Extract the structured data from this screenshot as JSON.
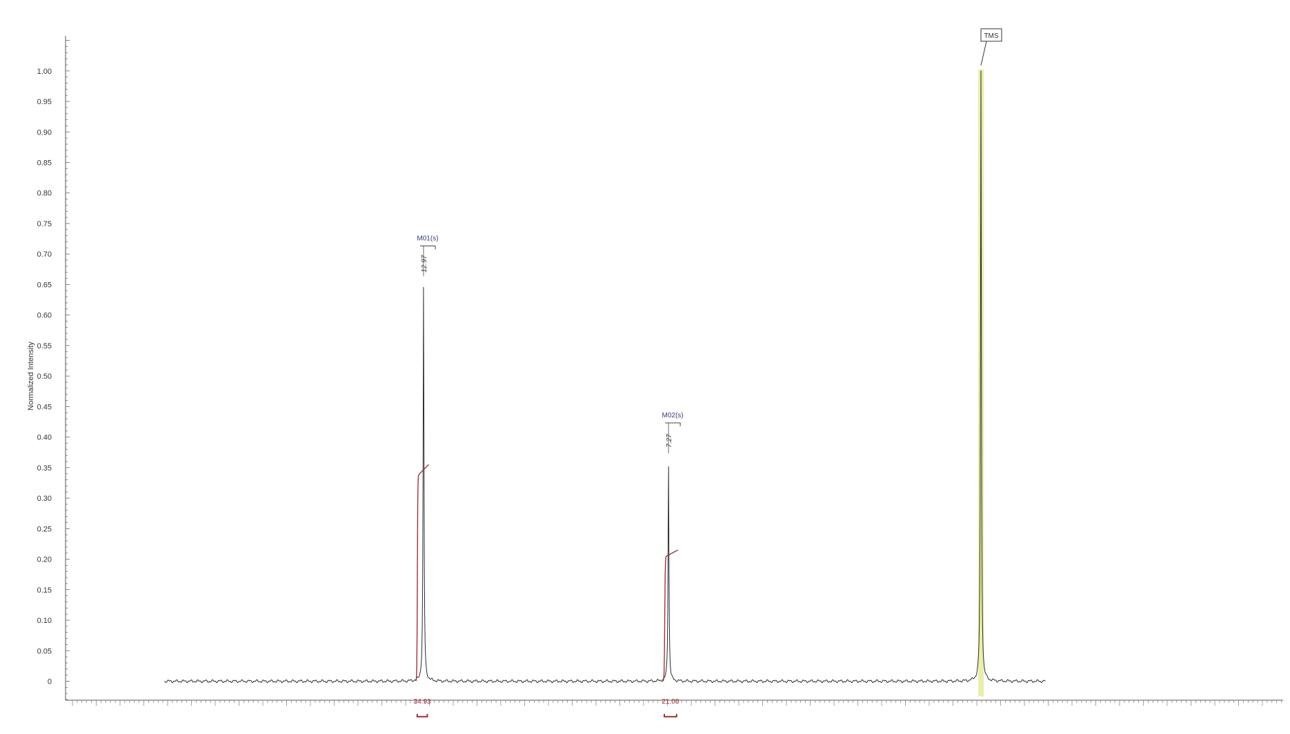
{
  "chart_data": {
    "type": "line",
    "title": "",
    "xlabel": "",
    "ylabel": "Normalized Intensity",
    "x_reversed": true,
    "xlim": [
      -2,
      20
    ],
    "ylim": [
      -0.03,
      1.06
    ],
    "grid": false,
    "yticks": [
      0,
      0.05,
      0.1,
      0.15,
      0.2,
      0.25,
      0.3,
      0.35,
      0.4,
      0.45,
      0.5,
      0.55,
      0.6,
      0.65,
      0.7,
      0.75,
      0.8,
      0.85,
      0.9,
      0.95,
      1.0
    ],
    "ytick_labels": [
      "0",
      "0.05",
      "0.10",
      "0.15",
      "0.20",
      "0.25",
      "0.30",
      "0.35",
      "0.40",
      "0.45",
      "0.50",
      "0.55",
      "0.60",
      "0.65",
      "0.70",
      "0.75",
      "0.80",
      "0.85",
      "0.90",
      "0.95",
      "1.00"
    ],
    "spectrum_range": [
      -1.5,
      19.0
    ],
    "peaks": [
      {
        "x": 12.97,
        "height": 0.65,
        "label": "12.97",
        "multiplet": "M01(s)"
      },
      {
        "x": 7.27,
        "height": 0.36,
        "label": "7.27",
        "multiplet": "M02(s)"
      },
      {
        "x": 0.0,
        "height": 1.0,
        "label": "TMS",
        "multiplet": ""
      }
    ],
    "integrals": [
      {
        "x_start": 13.15,
        "x_end": 12.85,
        "rise": 0.355,
        "value": "34.93"
      },
      {
        "x_start": 7.4,
        "x_end": 7.05,
        "rise": 0.215,
        "value": "21.00"
      }
    ],
    "colors": {
      "spectrum": "#2b2b2b",
      "integral": "#a0303a",
      "peak_label": "#3a3a7a",
      "tms_band": "#e9eeab"
    }
  }
}
